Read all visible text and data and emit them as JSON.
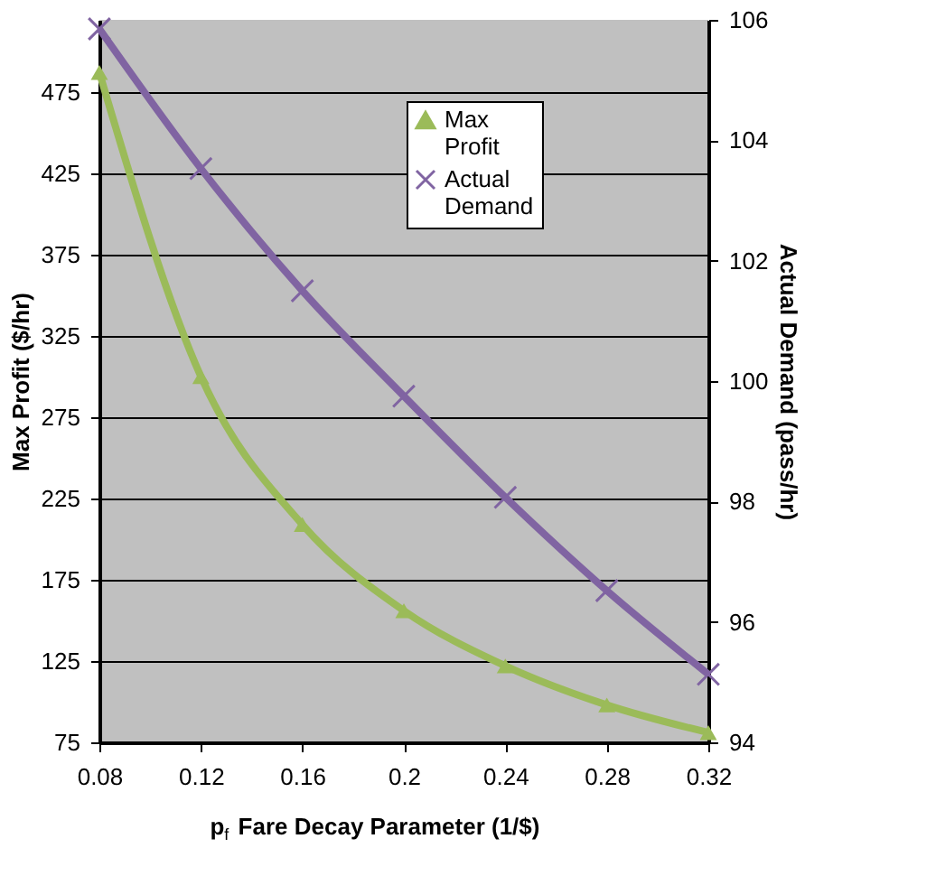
{
  "chart_data": {
    "type": "line",
    "xlabel": "p$_{f}$ Fare Decay Parameter (1/$)",
    "ylabel": "Max Profit ($/hr)",
    "y2label": "Actual Demand (pass/hr)",
    "x": [
      0.08,
      0.12,
      0.16,
      0.2,
      0.24,
      0.28,
      0.32
    ],
    "xlim": [
      0.08,
      0.32
    ],
    "xticks": [
      0.08,
      0.12,
      0.16,
      0.2,
      0.24,
      0.28,
      0.32
    ],
    "ylim": [
      75,
      519.4
    ],
    "yticks": [
      75,
      125,
      175,
      225,
      275,
      325,
      375,
      425,
      475
    ],
    "y2lim": [
      94,
      106
    ],
    "y2ticks": [
      94,
      96,
      98,
      100,
      102,
      104,
      106
    ],
    "series": [
      {
        "name": "Max Profit",
        "color": "#9bbb59",
        "marker": "triangle",
        "values": [
          487,
          300,
          209,
          156,
          122,
          98,
          81
        ]
      },
      {
        "name": "Actual Demand",
        "color": "#8064a2",
        "marker": "cross",
        "axis": "y2",
        "values": [
          105.85,
          103.53,
          101.5,
          99.75,
          98.07,
          96.52,
          95.13
        ]
      }
    ],
    "grid": "y",
    "legend": "top right",
    "line_style": "solid"
  }
}
